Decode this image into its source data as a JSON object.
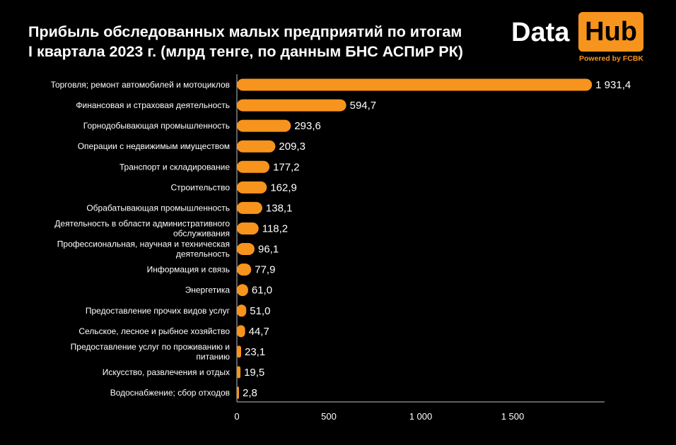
{
  "title_lines": [
    "Прибыль обследованных малых предприятий по итогам",
    "I квартала 2023 г.  (млрд тенге, по данным БНС АСПиР РК)"
  ],
  "logo": {
    "word1": "Data",
    "word2": "Hub",
    "tagline": "Powered by FCBK"
  },
  "colors": {
    "background": "#000000",
    "bar": "#f7941d",
    "text": "#ffffff"
  },
  "chart_data": {
    "type": "bar",
    "orientation": "horizontal",
    "categories": [
      [
        "Торговля; ремонт автомобилей и мотоциклов"
      ],
      [
        "Финансовая и страховая деятельность"
      ],
      [
        "Горнодобывающая промышленность"
      ],
      [
        "Операции с недвижимым имуществом"
      ],
      [
        "Транспорт и складирование"
      ],
      [
        "Строительство"
      ],
      [
        "Обрабатывающая промышленность"
      ],
      [
        "Деятельность в области административного",
        "обслуживания"
      ],
      [
        "Профессиональная, научная и техническая",
        "деятельность"
      ],
      [
        "Информация и связь"
      ],
      [
        "Энергетика"
      ],
      [
        "Предоставление прочих видов услуг"
      ],
      [
        "Сельское, лесное и рыбное хозяйство"
      ],
      [
        "Предоставление услуг по проживанию и",
        "питанию"
      ],
      [
        "Искусство, развлечения и отдых"
      ],
      [
        "Водоснабжение; сбор отходов"
      ]
    ],
    "values": [
      1931.4,
      594.7,
      293.6,
      209.3,
      177.2,
      162.9,
      138.1,
      118.2,
      96.1,
      77.9,
      61.0,
      51.0,
      44.7,
      23.1,
      19.5,
      2.8
    ],
    "value_labels": [
      "1 931,4",
      "594,7",
      "293,6",
      "209,3",
      "177,2",
      "162,9",
      "138,1",
      "118,2",
      "96,1",
      "77,9",
      "61,0",
      "51,0",
      "44,7",
      "23,1",
      "19,5",
      "2,8"
    ],
    "x_ticks": [
      0,
      500,
      1000,
      1500
    ],
    "x_tick_labels": [
      "0",
      "500",
      "1 000",
      "1 500"
    ],
    "xlim": [
      0,
      2000
    ],
    "grid": false,
    "legend": "none"
  }
}
